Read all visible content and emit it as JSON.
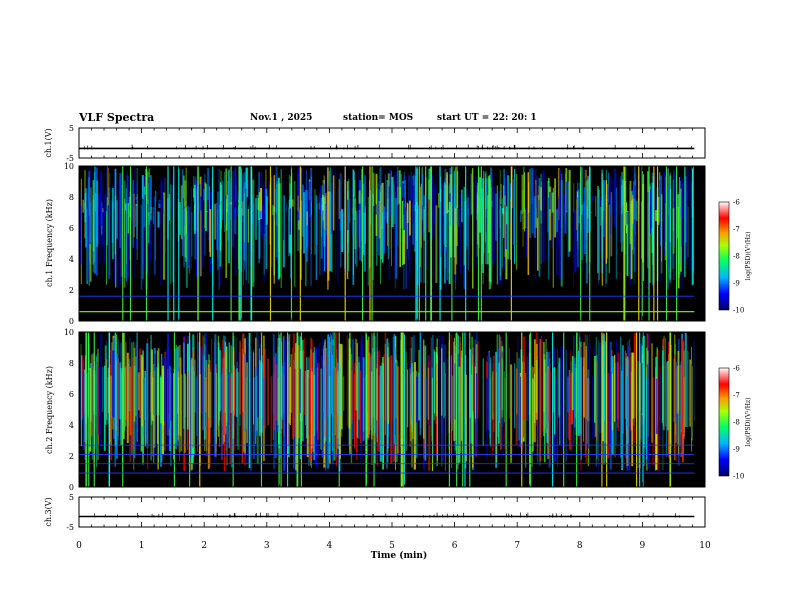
{
  "header": {
    "title": "VLF Spectra",
    "date": "Nov.1 , 2025",
    "station": "station= MOS",
    "start": "start UT =  22: 20: 1"
  },
  "chart_data": [
    {
      "type": "line",
      "panel": "ch1-voltage",
      "ylabel": "ch.1(V)",
      "ylim": [
        -5,
        5
      ],
      "yticks": [
        "5",
        "-5"
      ],
      "x": [
        0,
        9.83
      ],
      "values": [
        -1.8,
        -1.8
      ],
      "xlim": [
        0,
        10
      ]
    },
    {
      "type": "heatmap",
      "panel": "ch1-spectrogram",
      "ylabel": "ch.1 Frequency (kHz)",
      "ylim": [
        0,
        10
      ],
      "yticks": [
        "0",
        "2",
        "4",
        "6",
        "8",
        "10"
      ],
      "xlim": [
        0,
        10
      ],
      "data_end_min": 9.83,
      "horizontal_lines_khz": [
        0.6,
        1.6
      ],
      "colorbar": {
        "label": "log(PSD)(V²/Hz)",
        "range": [
          -10,
          -6
        ],
        "ticks": [
          "-6",
          "-7",
          "-8",
          "-9",
          "-10"
        ]
      }
    },
    {
      "type": "heatmap",
      "panel": "ch2-spectrogram",
      "ylabel": "ch.2 Frequency (kHz)",
      "ylim": [
        0,
        10
      ],
      "yticks": [
        "0",
        "2",
        "4",
        "6",
        "8",
        "10"
      ],
      "xlim": [
        0,
        10
      ],
      "data_end_min": 9.83,
      "horizontal_lines_khz": [
        0.9,
        1.5,
        2.1,
        2.7
      ],
      "colorbar": {
        "label": "log(PSD)(V²/Hz)",
        "range": [
          -10,
          -6
        ],
        "ticks": [
          "-6",
          "-7",
          "-8",
          "-9",
          "-10"
        ]
      }
    },
    {
      "type": "line",
      "panel": "ch3-voltage",
      "ylabel": "ch.3(V)",
      "ylim": [
        -5,
        5
      ],
      "yticks": [
        "5",
        "-5"
      ],
      "x": [
        0,
        9.83
      ],
      "values": [
        -1.5,
        -1.5
      ],
      "xlim": [
        0,
        10
      ]
    }
  ],
  "xaxis": {
    "label": "Time  (min)",
    "ticks": [
      "0",
      "1",
      "2",
      "3",
      "4",
      "5",
      "6",
      "7",
      "8",
      "9",
      "10"
    ],
    "range": [
      0,
      10
    ]
  }
}
